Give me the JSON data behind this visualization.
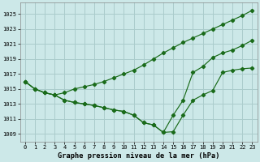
{
  "xlabel": "Graphe pression niveau de la mer (hPa)",
  "background_color": "#cce8e8",
  "grid_color": "#aacccc",
  "line_color": "#1a6b1a",
  "xlim": [
    -0.5,
    23.5
  ],
  "ylim": [
    1008.0,
    1026.5
  ],
  "yticks": [
    1009,
    1011,
    1013,
    1015,
    1017,
    1019,
    1021,
    1023,
    1025
  ],
  "xticks": [
    0,
    1,
    2,
    3,
    4,
    5,
    6,
    7,
    8,
    9,
    10,
    11,
    12,
    13,
    14,
    15,
    16,
    17,
    18,
    19,
    20,
    21,
    22,
    23
  ],
  "xtick_labels": [
    "0",
    "1",
    "2",
    "3",
    "4",
    "5",
    "6",
    "7",
    "8",
    "9",
    "10",
    "11",
    "12",
    "13",
    "14",
    "15",
    "16",
    "17",
    "18",
    "19",
    "20",
    "21",
    "22",
    "23"
  ],
  "upper": [
    1016.0,
    1015.0,
    1014.5,
    1014.2,
    1014.5,
    1015.0,
    1015.3,
    1015.6,
    1016.0,
    1016.5,
    1017.0,
    1017.5,
    1018.2,
    1019.0,
    1019.8,
    1020.5,
    1021.2,
    1021.8,
    1022.4,
    1023.0,
    1023.6,
    1024.2,
    1024.8,
    1025.5
  ],
  "middle": [
    1016.0,
    1015.0,
    1014.5,
    1014.2,
    1013.5,
    1013.2,
    1013.0,
    1012.8,
    1012.5,
    1012.2,
    1012.0,
    1011.5,
    1010.5,
    1010.2,
    1009.2,
    1011.5,
    1013.5,
    1017.2,
    1018.0,
    1019.2,
    1019.8,
    1020.2,
    1020.8,
    1021.5
  ],
  "lower": [
    1016.0,
    1015.0,
    1014.5,
    1014.2,
    1013.5,
    1013.2,
    1013.0,
    1012.8,
    1012.5,
    1012.2,
    1012.0,
    1011.5,
    1010.5,
    1010.2,
    1009.2,
    1009.3,
    1011.5,
    1013.5,
    1014.2,
    1014.8,
    1017.2,
    1017.5,
    1017.7,
    1017.8
  ]
}
